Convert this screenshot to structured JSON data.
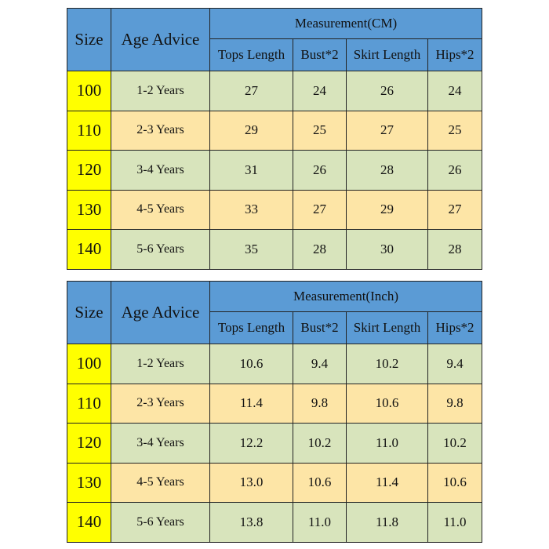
{
  "colors": {
    "header": "#5b9bd5",
    "size": "#ffff00",
    "row_even": "#d8e4bc",
    "row_odd": "#fde5a6"
  },
  "tables": [
    {
      "headers": {
        "size": "Size",
        "age": "Age Advice",
        "group": "Measurement(CM)",
        "columns": [
          "Tops Length",
          "Bust*2",
          "Skirt Length",
          "Hips*2"
        ]
      },
      "rows": [
        {
          "size": "100",
          "age": "1-2 Years",
          "values": [
            "27",
            "24",
            "26",
            "24"
          ]
        },
        {
          "size": "110",
          "age": "2-3 Years",
          "values": [
            "29",
            "25",
            "27",
            "25"
          ]
        },
        {
          "size": "120",
          "age": "3-4 Years",
          "values": [
            "31",
            "26",
            "28",
            "26"
          ]
        },
        {
          "size": "130",
          "age": "4-5 Years",
          "values": [
            "33",
            "27",
            "29",
            "27"
          ]
        },
        {
          "size": "140",
          "age": "5-6 Years",
          "values": [
            "35",
            "28",
            "30",
            "28"
          ]
        }
      ]
    },
    {
      "headers": {
        "size": "Size",
        "age": "Age Advice",
        "group": "Measurement(Inch)",
        "columns": [
          "Tops Length",
          "Bust*2",
          "Skirt Length",
          "Hips*2"
        ]
      },
      "rows": [
        {
          "size": "100",
          "age": "1-2 Years",
          "values": [
            "10.6",
            "9.4",
            "10.2",
            "9.4"
          ]
        },
        {
          "size": "110",
          "age": "2-3 Years",
          "values": [
            "11.4",
            "9.8",
            "10.6",
            "9.8"
          ]
        },
        {
          "size": "120",
          "age": "3-4 Years",
          "values": [
            "12.2",
            "10.2",
            "11.0",
            "10.2"
          ]
        },
        {
          "size": "130",
          "age": "4-5 Years",
          "values": [
            "13.0",
            "10.6",
            "11.4",
            "10.6"
          ]
        },
        {
          "size": "140",
          "age": "5-6 Years",
          "values": [
            "13.8",
            "11.0",
            "11.8",
            "11.0"
          ]
        }
      ]
    }
  ]
}
